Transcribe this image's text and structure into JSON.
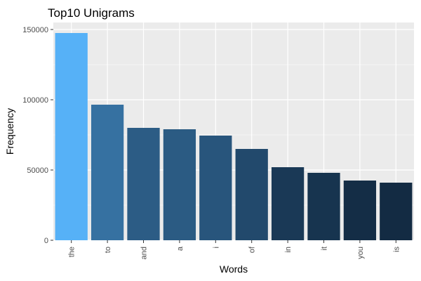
{
  "chart_data": {
    "type": "bar",
    "title": "Top10 Unigrams",
    "xlabel": "Words",
    "ylabel": "Frequency",
    "categories": [
      "the",
      "to",
      "and",
      "a",
      "i",
      "of",
      "in",
      "it",
      "you",
      "is"
    ],
    "values": [
      147500,
      96500,
      80000,
      79000,
      74500,
      65000,
      52000,
      48000,
      42500,
      41000
    ],
    "ylim": [
      0,
      155000
    ],
    "yticks": [
      0,
      50000,
      100000,
      150000
    ],
    "ytick_labels": [
      "0",
      "50000",
      "100000",
      "150000"
    ],
    "color_scale": {
      "low": "#132B43",
      "high": "#56B1F7"
    },
    "grid": true,
    "panel_background": "#EBEBEB",
    "grid_color": "#FFFFFF",
    "legend": "none"
  }
}
